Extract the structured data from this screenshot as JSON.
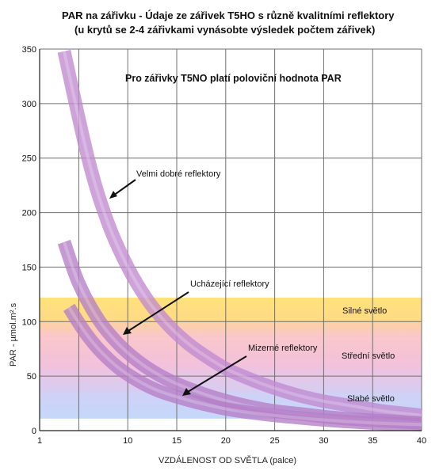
{
  "chart_data": {
    "type": "line",
    "title": "PAR na zářivku - Údaje ze zářivek T5HO s různě kvalitními reflektory",
    "subtitle": "(u krytů se 2-4 zářivkami vynásobte výsledek počtem zářivek)",
    "note": "Pro zářivky T5NO platí poloviční hodnota PAR",
    "xlabel": "VZDÁLENOST OD SVĚTLA (palce)",
    "ylabel": "PAR - µmol.m².s",
    "xlim": [
      1,
      40
    ],
    "ylim": [
      0,
      350
    ],
    "x_ticks": [
      "1",
      "10",
      "15",
      "20",
      "25",
      "30",
      "35",
      "40"
    ],
    "x_tick_values": [
      1,
      10,
      15,
      20,
      25,
      30,
      35,
      40
    ],
    "y_ticks": [
      "0",
      "50",
      "100",
      "150",
      "200",
      "250",
      "300",
      "350"
    ],
    "y_tick_values": [
      0,
      50,
      100,
      150,
      200,
      250,
      300,
      350
    ],
    "grid": true,
    "bands": [
      {
        "label": "Silné světlo",
        "from": 100,
        "to": 122,
        "color": "#ffe27a"
      },
      {
        "label": "Střední světlo",
        "from": 36,
        "to": 100,
        "color": "#f6c2d8"
      },
      {
        "label": "Slabé světlo",
        "from": 11,
        "to": 36,
        "color": "#c7d8fb"
      }
    ],
    "series": [
      {
        "name": "Velmi dobré reflektory",
        "x": [
          3.5,
          6,
          8,
          10,
          12,
          14,
          16,
          18,
          20,
          22,
          24,
          26,
          28,
          30,
          32,
          34,
          36,
          38,
          40
        ],
        "y": [
          348,
          248,
          190,
          150,
          120,
          98,
          81,
          68,
          57,
          49,
          42,
          36,
          31,
          27,
          24,
          21,
          18,
          16,
          14
        ],
        "color": "#c089cf"
      },
      {
        "name": "Ucházející reflektory",
        "x": [
          3.5,
          5,
          7,
          9,
          11,
          13,
          15,
          17,
          19,
          22,
          25,
          28,
          31,
          34,
          37,
          40
        ],
        "y": [
          173,
          135,
          102,
          80,
          64,
          52,
          43,
          36,
          30,
          23,
          18,
          15,
          12,
          10,
          8.5,
          7
        ],
        "color": "#b57ec6"
      },
      {
        "name": "Mizerné reflektory",
        "x": [
          4,
          5.5,
          7,
          9,
          11,
          13,
          15,
          17,
          20,
          23,
          26,
          29,
          32,
          35,
          38,
          40
        ],
        "y": [
          113,
          92,
          75,
          58,
          46,
          37,
          31,
          26,
          20,
          16,
          13,
          10.5,
          8.5,
          7,
          6,
          5.5
        ],
        "color": "#b57ec6"
      }
    ],
    "annotations": [
      {
        "text": "Velmi dobré reflektory",
        "series": 0
      },
      {
        "text": "Ucházející reflektory",
        "series": 1
      },
      {
        "text": "Mizerné reflektory",
        "series": 2
      }
    ]
  }
}
